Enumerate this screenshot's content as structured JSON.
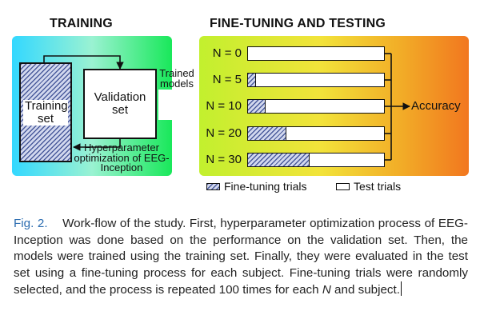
{
  "figure": {
    "training_title": "TRAINING",
    "finetune_title": "FINE-TUNING AND TESTING",
    "training_set_label": "Training set",
    "validation_set_label": "Validation set",
    "hyperparameter_label": "Hyperparameter optimization of EEG-Inception",
    "trained_models_label": "Trained models",
    "accuracy_label": "Accuracy",
    "rows": [
      {
        "label": "N = 0",
        "fraction": 0.0
      },
      {
        "label": "N = 5",
        "fraction": 0.06
      },
      {
        "label": "N = 10",
        "fraction": 0.13
      },
      {
        "label": "N = 20",
        "fraction": 0.28
      },
      {
        "label": "N = 30",
        "fraction": 0.45
      }
    ],
    "legend": {
      "finetune": "Fine-tuning trials",
      "test": "Test trials"
    },
    "colors": {
      "training_gradient": [
        "#33d8ff",
        "#19e85a"
      ],
      "testing_gradient": [
        "#c2f02e",
        "#f2771f"
      ],
      "hatch": "#4a5b9c"
    }
  },
  "caption": {
    "label": "Fig. 2.",
    "text": "Work-flow of the study. First, hyperparameter optimization process of EEG-Inception was done based on the performance on the validation set. Then, the models were trained using the training set. Finally, they were evaluated in the test set using a fine-tuning process for each subject. Fine-tuning trials were randomly selected, and the process is repeated 100 times for each",
    "italic": "N",
    "tail": "and subject."
  }
}
